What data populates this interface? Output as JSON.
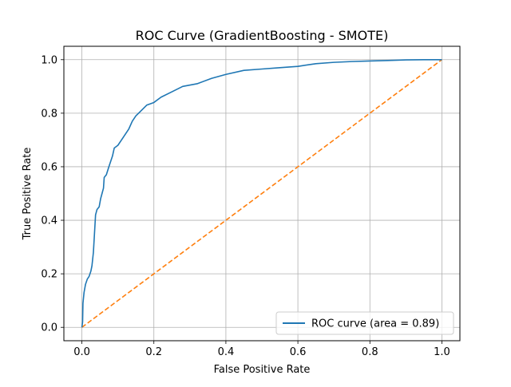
{
  "chart_data": {
    "type": "line",
    "title": "ROC Curve (GradientBoosting - SMOTE)",
    "xlabel": "False Positive Rate",
    "ylabel": "True Positive Rate",
    "xlim": [
      -0.05,
      1.05
    ],
    "ylim": [
      -0.05,
      1.05
    ],
    "grid": true,
    "legend_position": "lower-right",
    "x_ticks": [
      0.0,
      0.2,
      0.4,
      0.6,
      0.8,
      1.0
    ],
    "x_tick_labels": [
      "0.0",
      "0.2",
      "0.4",
      "0.6",
      "0.8",
      "1.0"
    ],
    "y_ticks": [
      0.0,
      0.2,
      0.4,
      0.6,
      0.8,
      1.0
    ],
    "y_tick_labels": [
      "0.0",
      "0.2",
      "0.4",
      "0.6",
      "0.8",
      "1.0"
    ],
    "series": [
      {
        "name": "ROC curve (area = 0.89)",
        "color": "#1f77b4",
        "style": "solid",
        "points": [
          [
            0.0,
            0.0
          ],
          [
            0.002,
            0.02
          ],
          [
            0.003,
            0.09
          ],
          [
            0.006,
            0.13
          ],
          [
            0.01,
            0.16
          ],
          [
            0.015,
            0.18
          ],
          [
            0.02,
            0.19
          ],
          [
            0.025,
            0.21
          ],
          [
            0.028,
            0.23
          ],
          [
            0.032,
            0.28
          ],
          [
            0.035,
            0.35
          ],
          [
            0.038,
            0.42
          ],
          [
            0.042,
            0.44
          ],
          [
            0.048,
            0.45
          ],
          [
            0.052,
            0.48
          ],
          [
            0.056,
            0.5
          ],
          [
            0.06,
            0.52
          ],
          [
            0.062,
            0.56
          ],
          [
            0.068,
            0.57
          ],
          [
            0.075,
            0.6
          ],
          [
            0.08,
            0.62
          ],
          [
            0.085,
            0.64
          ],
          [
            0.09,
            0.67
          ],
          [
            0.1,
            0.68
          ],
          [
            0.11,
            0.7
          ],
          [
            0.12,
            0.72
          ],
          [
            0.13,
            0.74
          ],
          [
            0.14,
            0.77
          ],
          [
            0.15,
            0.79
          ],
          [
            0.165,
            0.81
          ],
          [
            0.18,
            0.83
          ],
          [
            0.2,
            0.84
          ],
          [
            0.22,
            0.86
          ],
          [
            0.25,
            0.88
          ],
          [
            0.28,
            0.9
          ],
          [
            0.32,
            0.91
          ],
          [
            0.36,
            0.93
          ],
          [
            0.4,
            0.945
          ],
          [
            0.45,
            0.96
          ],
          [
            0.5,
            0.965
          ],
          [
            0.55,
            0.97
          ],
          [
            0.6,
            0.975
          ],
          [
            0.65,
            0.985
          ],
          [
            0.7,
            0.99
          ],
          [
            0.75,
            0.993
          ],
          [
            0.8,
            0.995
          ],
          [
            0.85,
            0.997
          ],
          [
            0.9,
            0.999
          ],
          [
            0.95,
            1.0
          ],
          [
            1.0,
            1.0
          ]
        ]
      },
      {
        "name": "",
        "color": "#ff7f0e",
        "style": "dashed",
        "points": [
          [
            0.0,
            0.0
          ],
          [
            1.0,
            1.0
          ]
        ]
      }
    ]
  }
}
